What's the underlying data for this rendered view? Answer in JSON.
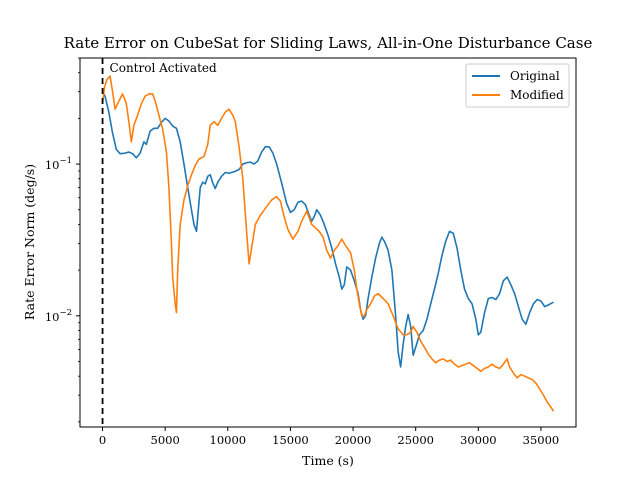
{
  "chart_data": {
    "type": "line",
    "title": "Rate Error on CubeSat for Sliding Laws, All-in-One Disturbance Case",
    "xlabel": "Time (s)",
    "ylabel": "Rate Error Norm (deg/s)",
    "xlim": [
      -1800,
      37800
    ],
    "ylim": [
      0.00185,
      0.5
    ],
    "yscale": "log",
    "grid": false,
    "legend": "top-right",
    "x_ticks": [
      {
        "value": 0,
        "label": "0"
      },
      {
        "value": 5000,
        "label": "5000"
      },
      {
        "value": 10000,
        "label": "10000"
      },
      {
        "value": 15000,
        "label": "15000"
      },
      {
        "value": 20000,
        "label": "20000"
      },
      {
        "value": 25000,
        "label": "25000"
      },
      {
        "value": 30000,
        "label": "30000"
      },
      {
        "value": 35000,
        "label": "35000"
      }
    ],
    "y_ticks": [
      {
        "value": 0.01,
        "label": "10",
        "exp": "−2"
      },
      {
        "value": 0.1,
        "label": "10",
        "exp": "−1"
      }
    ],
    "annotations": [
      {
        "type": "vline",
        "x": 0,
        "style": "dashed",
        "color": "#000000",
        "label": "Control Activated"
      }
    ],
    "series": [
      {
        "name": "Original",
        "color": "#1f77b4",
        "points": [
          [
            0,
            0.3
          ],
          [
            200,
            0.28
          ],
          [
            500,
            0.22
          ],
          [
            800,
            0.16
          ],
          [
            1100,
            0.125
          ],
          [
            1400,
            0.117
          ],
          [
            1800,
            0.118
          ],
          [
            2100,
            0.12
          ],
          [
            2400,
            0.117
          ],
          [
            2700,
            0.11
          ],
          [
            3000,
            0.118
          ],
          [
            3300,
            0.14
          ],
          [
            3500,
            0.135
          ],
          [
            3800,
            0.165
          ],
          [
            4100,
            0.172
          ],
          [
            4400,
            0.172
          ],
          [
            4700,
            0.188
          ],
          [
            5000,
            0.2
          ],
          [
            5300,
            0.192
          ],
          [
            5600,
            0.178
          ],
          [
            5900,
            0.172
          ],
          [
            6200,
            0.14
          ],
          [
            6500,
            0.1
          ],
          [
            6800,
            0.07
          ],
          [
            7100,
            0.05
          ],
          [
            7300,
            0.04
          ],
          [
            7500,
            0.036
          ],
          [
            7600,
            0.045
          ],
          [
            7800,
            0.07
          ],
          [
            8000,
            0.076
          ],
          [
            8200,
            0.074
          ],
          [
            8400,
            0.083
          ],
          [
            8600,
            0.085
          ],
          [
            8800,
            0.075
          ],
          [
            9000,
            0.069
          ],
          [
            9200,
            0.076
          ],
          [
            9500,
            0.083
          ],
          [
            9800,
            0.088
          ],
          [
            10100,
            0.087
          ],
          [
            10500,
            0.089
          ],
          [
            10900,
            0.092
          ],
          [
            11200,
            0.1
          ],
          [
            11500,
            0.102
          ],
          [
            11800,
            0.103
          ],
          [
            12100,
            0.1
          ],
          [
            12400,
            0.105
          ],
          [
            12700,
            0.12
          ],
          [
            13000,
            0.13
          ],
          [
            13300,
            0.13
          ],
          [
            13600,
            0.118
          ],
          [
            13900,
            0.1
          ],
          [
            14300,
            0.075
          ],
          [
            14700,
            0.055
          ],
          [
            15000,
            0.048
          ],
          [
            15300,
            0.05
          ],
          [
            15600,
            0.056
          ],
          [
            15900,
            0.057
          ],
          [
            16200,
            0.054
          ],
          [
            16500,
            0.046
          ],
          [
            16700,
            0.042
          ],
          [
            16900,
            0.045
          ],
          [
            17100,
            0.05
          ],
          [
            17400,
            0.046
          ],
          [
            17700,
            0.04
          ],
          [
            18000,
            0.034
          ],
          [
            18300,
            0.028
          ],
          [
            18600,
            0.022
          ],
          [
            18900,
            0.018
          ],
          [
            19100,
            0.015
          ],
          [
            19300,
            0.016
          ],
          [
            19500,
            0.021
          ],
          [
            19800,
            0.02
          ],
          [
            20100,
            0.017
          ],
          [
            20400,
            0.014
          ],
          [
            20600,
            0.011
          ],
          [
            20800,
            0.0095
          ],
          [
            21000,
            0.01
          ],
          [
            21200,
            0.013
          ],
          [
            21500,
            0.018
          ],
          [
            21800,
            0.024
          ],
          [
            22100,
            0.03
          ],
          [
            22300,
            0.033
          ],
          [
            22500,
            0.031
          ],
          [
            22800,
            0.027
          ],
          [
            23100,
            0.02
          ],
          [
            23400,
            0.01
          ],
          [
            23600,
            0.0058
          ],
          [
            23800,
            0.0046
          ],
          [
            24000,
            0.0065
          ],
          [
            24200,
            0.0085
          ],
          [
            24400,
            0.0102
          ],
          [
            24600,
            0.0085
          ],
          [
            24800,
            0.0055
          ],
          [
            25000,
            0.0062
          ],
          [
            25300,
            0.0075
          ],
          [
            25600,
            0.008
          ],
          [
            25900,
            0.0095
          ],
          [
            26200,
            0.012
          ],
          [
            26500,
            0.015
          ],
          [
            26800,
            0.019
          ],
          [
            27100,
            0.025
          ],
          [
            27400,
            0.031
          ],
          [
            27700,
            0.036
          ],
          [
            28000,
            0.035
          ],
          [
            28300,
            0.028
          ],
          [
            28600,
            0.02
          ],
          [
            28900,
            0.015
          ],
          [
            29200,
            0.013
          ],
          [
            29500,
            0.012
          ],
          [
            29800,
            0.0095
          ],
          [
            30000,
            0.0075
          ],
          [
            30200,
            0.0078
          ],
          [
            30500,
            0.0105
          ],
          [
            30800,
            0.013
          ],
          [
            31100,
            0.0132
          ],
          [
            31400,
            0.0128
          ],
          [
            31700,
            0.014
          ],
          [
            32000,
            0.017
          ],
          [
            32300,
            0.018
          ],
          [
            32600,
            0.016
          ],
          [
            32900,
            0.014
          ],
          [
            33200,
            0.0115
          ],
          [
            33500,
            0.0095
          ],
          [
            33800,
            0.0088
          ],
          [
            34100,
            0.0105
          ],
          [
            34400,
            0.012
          ],
          [
            34700,
            0.0128
          ],
          [
            35000,
            0.0125
          ],
          [
            35300,
            0.0115
          ],
          [
            35600,
            0.0118
          ],
          [
            36000,
            0.0123
          ]
        ]
      },
      {
        "name": "Modified",
        "color": "#ff7f0e",
        "points": [
          [
            0,
            0.25
          ],
          [
            150,
            0.32
          ],
          [
            350,
            0.36
          ],
          [
            600,
            0.38
          ],
          [
            800,
            0.3
          ],
          [
            1000,
            0.23
          ],
          [
            1300,
            0.26
          ],
          [
            1600,
            0.29
          ],
          [
            1900,
            0.25
          ],
          [
            2100,
            0.19
          ],
          [
            2300,
            0.14
          ],
          [
            2500,
            0.18
          ],
          [
            2800,
            0.21
          ],
          [
            3100,
            0.25
          ],
          [
            3400,
            0.28
          ],
          [
            3700,
            0.29
          ],
          [
            4000,
            0.29
          ],
          [
            4200,
            0.26
          ],
          [
            4500,
            0.21
          ],
          [
            4800,
            0.17
          ],
          [
            5100,
            0.12
          ],
          [
            5300,
            0.07
          ],
          [
            5500,
            0.03
          ],
          [
            5600,
            0.018
          ],
          [
            5800,
            0.012
          ],
          [
            5900,
            0.0105
          ],
          [
            6000,
            0.02
          ],
          [
            6200,
            0.04
          ],
          [
            6500,
            0.058
          ],
          [
            6800,
            0.072
          ],
          [
            7100,
            0.085
          ],
          [
            7400,
            0.098
          ],
          [
            7700,
            0.108
          ],
          [
            8100,
            0.112
          ],
          [
            8400,
            0.135
          ],
          [
            8600,
            0.18
          ],
          [
            8900,
            0.19
          ],
          [
            9200,
            0.18
          ],
          [
            9500,
            0.2
          ],
          [
            9800,
            0.22
          ],
          [
            10100,
            0.23
          ],
          [
            10400,
            0.21
          ],
          [
            10600,
            0.19
          ],
          [
            10900,
            0.13
          ],
          [
            11200,
            0.08
          ],
          [
            11500,
            0.036
          ],
          [
            11700,
            0.022
          ],
          [
            11900,
            0.028
          ],
          [
            12200,
            0.04
          ],
          [
            12600,
            0.046
          ],
          [
            13000,
            0.051
          ],
          [
            13500,
            0.058
          ],
          [
            13900,
            0.061
          ],
          [
            14200,
            0.057
          ],
          [
            14500,
            0.045
          ],
          [
            14800,
            0.037
          ],
          [
            15200,
            0.032
          ],
          [
            15600,
            0.036
          ],
          [
            15900,
            0.042
          ],
          [
            16300,
            0.049
          ],
          [
            16700,
            0.04
          ],
          [
            17000,
            0.038
          ],
          [
            17300,
            0.036
          ],
          [
            17600,
            0.033
          ],
          [
            17900,
            0.027
          ],
          [
            18200,
            0.024
          ],
          [
            18500,
            0.027
          ],
          [
            18800,
            0.029
          ],
          [
            19100,
            0.032
          ],
          [
            19400,
            0.029
          ],
          [
            19800,
            0.026
          ],
          [
            20100,
            0.02
          ],
          [
            20300,
            0.015
          ],
          [
            20500,
            0.012
          ],
          [
            20700,
            0.01
          ],
          [
            20900,
            0.01
          ],
          [
            21100,
            0.011
          ],
          [
            21400,
            0.012
          ],
          [
            21700,
            0.0135
          ],
          [
            22000,
            0.014
          ],
          [
            22400,
            0.013
          ],
          [
            22800,
            0.012
          ],
          [
            23200,
            0.01
          ],
          [
            23600,
            0.0082
          ],
          [
            24000,
            0.0075
          ],
          [
            24300,
            0.0075
          ],
          [
            24600,
            0.0078
          ],
          [
            24800,
            0.0085
          ],
          [
            25100,
            0.0078
          ],
          [
            25400,
            0.0068
          ],
          [
            25700,
            0.0062
          ],
          [
            26000,
            0.0056
          ],
          [
            26300,
            0.0052
          ],
          [
            26600,
            0.0049
          ],
          [
            26900,
            0.0051
          ],
          [
            27200,
            0.0052
          ],
          [
            27500,
            0.005
          ],
          [
            27800,
            0.0051
          ],
          [
            28100,
            0.0048
          ],
          [
            28400,
            0.0046
          ],
          [
            28700,
            0.0047
          ],
          [
            29000,
            0.0048
          ],
          [
            29300,
            0.0049
          ],
          [
            29600,
            0.0047
          ],
          [
            29900,
            0.0045
          ],
          [
            30200,
            0.0043
          ],
          [
            30500,
            0.0045
          ],
          [
            30800,
            0.0046
          ],
          [
            31100,
            0.0048
          ],
          [
            31400,
            0.0046
          ],
          [
            31700,
            0.0045
          ],
          [
            32000,
            0.0048
          ],
          [
            32300,
            0.0052
          ],
          [
            32500,
            0.0046
          ],
          [
            32800,
            0.0042
          ],
          [
            33100,
            0.0039
          ],
          [
            33400,
            0.0041
          ],
          [
            33700,
            0.004
          ],
          [
            34000,
            0.0039
          ],
          [
            34300,
            0.0038
          ],
          [
            34600,
            0.0036
          ],
          [
            34900,
            0.0033
          ],
          [
            35200,
            0.003
          ],
          [
            35500,
            0.0027
          ],
          [
            35800,
            0.0025
          ],
          [
            36000,
            0.00235
          ]
        ]
      }
    ]
  }
}
